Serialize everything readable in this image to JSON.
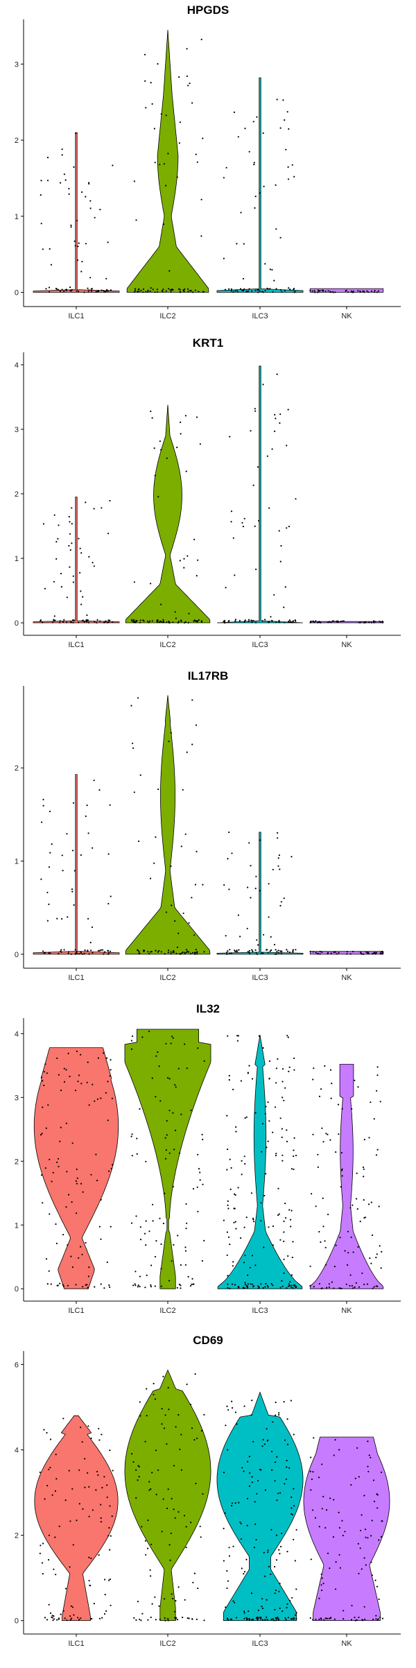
{
  "chart_data": [
    {
      "type": "violin",
      "title": "HPGDS",
      "categories": [
        "ILC1",
        "ILC2",
        "ILC3",
        "NK"
      ],
      "y_ticks": [
        0,
        1,
        2,
        3
      ],
      "ylim": [
        -0.15,
        3.55
      ],
      "colors": [
        "#F8766D",
        "#7CAE00",
        "#00BFC4",
        "#C77CFF"
      ],
      "violins": [
        {
          "category": "ILC1",
          "max": 2.1
        },
        {
          "category": "ILC2",
          "max": 3.45
        },
        {
          "category": "ILC3",
          "max": 2.82
        },
        {
          "category": "NK",
          "max": 0.05
        }
      ]
    },
    {
      "type": "violin",
      "title": "KRT1",
      "categories": [
        "ILC1",
        "ILC2",
        "ILC3",
        "NK"
      ],
      "y_ticks": [
        0,
        1,
        2,
        3,
        4
      ],
      "ylim": [
        -0.15,
        4.15
      ],
      "colors": [
        "#F8766D",
        "#7CAE00",
        "#00BFC4",
        "#C77CFF"
      ],
      "violins": [
        {
          "category": "ILC1",
          "max": 1.95
        },
        {
          "category": "ILC2",
          "max": 3.38
        },
        {
          "category": "ILC3",
          "max": 3.98
        },
        {
          "category": "NK",
          "max": 0.02
        }
      ]
    },
    {
      "type": "violin",
      "title": "IL17RB",
      "categories": [
        "ILC1",
        "ILC2",
        "ILC3",
        "NK"
      ],
      "y_ticks": [
        0,
        1,
        2
      ],
      "ylim": [
        -0.12,
        2.85
      ],
      "colors": [
        "#F8766D",
        "#7CAE00",
        "#00BFC4",
        "#C77CFF"
      ],
      "violins": [
        {
          "category": "ILC1",
          "max": 1.93
        },
        {
          "category": "ILC2",
          "max": 2.78
        },
        {
          "category": "ILC3",
          "max": 1.31
        },
        {
          "category": "NK",
          "max": 0.03
        }
      ]
    },
    {
      "type": "violin",
      "title": "IL32",
      "categories": [
        "ILC1",
        "ILC2",
        "ILC3",
        "NK"
      ],
      "y_ticks": [
        0,
        1,
        2,
        3,
        4
      ],
      "ylim": [
        -0.15,
        4.2
      ],
      "colors": [
        "#F8766D",
        "#7CAE00",
        "#00BFC4",
        "#C77CFF"
      ],
      "violins": [
        {
          "category": "ILC1",
          "max": 3.78
        },
        {
          "category": "ILC2",
          "max": 4.07
        },
        {
          "category": "ILC3",
          "max": 3.98
        },
        {
          "category": "NK",
          "max": 3.52
        }
      ]
    },
    {
      "type": "violin",
      "title": "CD69",
      "categories": [
        "ILC1",
        "ILC2",
        "ILC3",
        "NK"
      ],
      "y_ticks": [
        0,
        2,
        4,
        6
      ],
      "ylim": [
        -0.25,
        6.25
      ],
      "colors": [
        "#F8766D",
        "#7CAE00",
        "#00BFC4",
        "#C77CFF"
      ],
      "violins": [
        {
          "category": "ILC1",
          "max": 4.8
        },
        {
          "category": "ILC2",
          "max": 5.87
        },
        {
          "category": "ILC3",
          "max": 5.35
        },
        {
          "category": "NK",
          "max": 4.3
        }
      ]
    }
  ]
}
